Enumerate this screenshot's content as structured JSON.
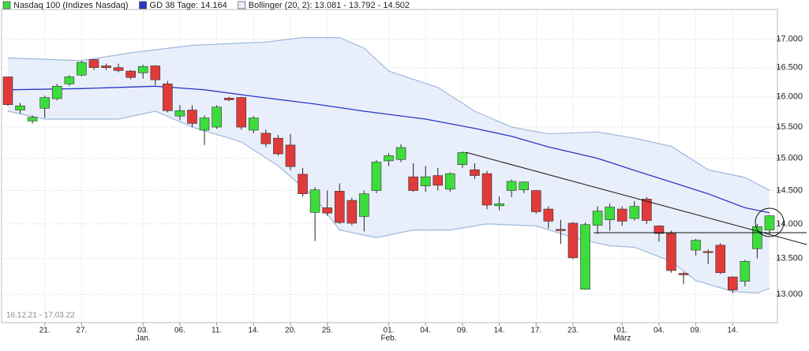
{
  "chart_data": {
    "type": "candlestick",
    "log_scale": true,
    "grid": true,
    "date_range": "16.12.21 - 17.03.22",
    "categories": [
      null,
      null,
      null,
      "21.",
      null,
      null,
      "27.",
      null,
      null,
      null,
      null,
      "03.",
      null,
      null,
      "06.",
      null,
      null,
      "11.",
      null,
      null,
      "14.",
      null,
      null,
      "20.",
      null,
      null,
      "25.",
      null,
      null,
      null,
      null,
      "01.",
      null,
      null,
      "04.",
      null,
      null,
      "09.",
      null,
      null,
      "14.",
      null,
      null,
      "17.",
      null,
      null,
      "23.",
      null,
      null,
      null,
      "01.",
      null,
      null,
      "04.",
      null,
      null,
      "09.",
      null,
      null,
      "14.",
      null,
      null,
      null
    ],
    "month_labels": [
      null,
      null,
      null,
      null,
      null,
      null,
      null,
      null,
      null,
      null,
      null,
      "Jan.",
      null,
      null,
      null,
      null,
      null,
      null,
      null,
      null,
      null,
      null,
      null,
      null,
      null,
      null,
      null,
      null,
      null,
      null,
      null,
      "Feb.",
      null,
      null,
      null,
      null,
      null,
      null,
      null,
      null,
      null,
      null,
      null,
      null,
      null,
      null,
      null,
      null,
      null,
      null,
      "März",
      null,
      null,
      null,
      null,
      null,
      null,
      null,
      null,
      null,
      null,
      null,
      null
    ],
    "ylim": [
      12620,
      17540
    ],
    "yticks": [
      {
        "value": 13000,
        "label": "13.000"
      },
      {
        "value": 13500,
        "label": "13.500"
      },
      {
        "value": 14000,
        "label": "14.000"
      },
      {
        "value": 14500,
        "label": "14.500"
      },
      {
        "value": 15000,
        "label": "15.000"
      },
      {
        "value": 15500,
        "label": "15.500"
      },
      {
        "value": 16000,
        "label": "16.000"
      },
      {
        "value": 16500,
        "label": "16.500"
      },
      {
        "value": 17000,
        "label": "17.000"
      }
    ],
    "series": [
      {
        "name": "Nasdaq 100 (Indizes Nasdaq)",
        "color": "#3ddc3d",
        "down_color": "#e03a3a",
        "open": [
          16340,
          15780,
          15600,
          15810,
          15970,
          16220,
          16370,
          16640,
          16530,
          16500,
          16440,
          16410,
          16530,
          16220,
          15680,
          15780,
          15450,
          15500,
          15980,
          15990,
          15450,
          15400,
          15320,
          15210,
          14750,
          14170,
          14240,
          14490,
          14350,
          14110,
          14500,
          14960,
          14980,
          14710,
          14570,
          14730,
          14520,
          14900,
          14820,
          14760,
          14270,
          14500,
          14510,
          14500,
          14220,
          13920,
          14010,
          13070,
          13980,
          14060,
          14220,
          14080,
          14370,
          13970,
          13860,
          13290,
          13620,
          13600,
          13690,
          13240,
          13180,
          13640,
          13910
        ],
        "high": [
          16340,
          15900,
          15690,
          16020,
          16220,
          16370,
          16620,
          16650,
          16570,
          16570,
          16460,
          16550,
          16540,
          16270,
          15860,
          15860,
          15690,
          15860,
          16000,
          16000,
          15680,
          15460,
          15370,
          15390,
          14850,
          14550,
          14500,
          14610,
          14390,
          14500,
          14970,
          15080,
          15220,
          14920,
          14880,
          14850,
          14780,
          15110,
          14920,
          14800,
          14410,
          14670,
          14640,
          14510,
          14260,
          14060,
          14030,
          14020,
          14260,
          14300,
          14260,
          14340,
          14400,
          13980,
          13900,
          13310,
          13780,
          13630,
          13720,
          13250,
          13480,
          14000,
          14130
        ],
        "low": [
          15850,
          15720,
          15560,
          15650,
          15940,
          16190,
          16350,
          16460,
          16460,
          16420,
          16300,
          16310,
          16200,
          15740,
          15610,
          15500,
          15210,
          15470,
          15930,
          15460,
          15400,
          15180,
          15040,
          14810,
          14410,
          13750,
          14120,
          14000,
          13980,
          13890,
          14460,
          14880,
          14940,
          14480,
          14480,
          14500,
          14480,
          14850,
          14680,
          14220,
          14200,
          14400,
          14460,
          14150,
          13930,
          13710,
          13490,
          13070,
          13850,
          13900,
          13970,
          14050,
          14000,
          13740,
          13300,
          13140,
          13540,
          13420,
          13280,
          13020,
          13110,
          13500,
          13840
        ],
        "close": [
          15870,
          15850,
          15660,
          15990,
          16180,
          16340,
          16590,
          16500,
          16500,
          16450,
          16330,
          16520,
          16290,
          15770,
          15770,
          15560,
          15650,
          15830,
          15950,
          15500,
          15650,
          15230,
          15070,
          14870,
          14450,
          14510,
          14160,
          14020,
          14010,
          14450,
          14940,
          15040,
          15170,
          14500,
          14710,
          14580,
          14760,
          15090,
          14730,
          14280,
          14300,
          14640,
          14630,
          14180,
          14040,
          13900,
          13510,
          13990,
          14190,
          14250,
          14040,
          14260,
          14050,
          13860,
          13330,
          13270,
          13760,
          13590,
          13300,
          13060,
          13460,
          13960,
          14120
        ]
      },
      {
        "name": "GD 38 Tage: 14.164",
        "color": "#2b36c8",
        "x": [
          0,
          6,
          12,
          16,
          20,
          25,
          29,
          34,
          38,
          41,
          44,
          48,
          51,
          54,
          57,
          60,
          62
        ],
        "values": [
          16120,
          16140,
          16180,
          16120,
          16010,
          15880,
          15760,
          15630,
          15480,
          15350,
          15180,
          15000,
          14810,
          14630,
          14450,
          14240,
          14164
        ]
      },
      {
        "name": "Bollinger (20, 2): 13.081 - 13.792 - 14.502",
        "color": "#9db8de",
        "fill": "#e9effa",
        "x_upper": [
          0,
          6,
          10,
          15,
          21,
          24,
          27,
          29,
          31,
          35,
          38,
          41,
          44,
          48,
          51,
          54,
          57,
          60,
          62
        ],
        "upper": [
          16670,
          16620,
          16760,
          16890,
          16950,
          17030,
          17030,
          16840,
          16440,
          16160,
          15760,
          15500,
          15390,
          15420,
          15320,
          15190,
          14820,
          14700,
          14502
        ],
        "x_lower": [
          0,
          3,
          6,
          9,
          12,
          15,
          19,
          22,
          25,
          27,
          30,
          33,
          36,
          39,
          43,
          46,
          49,
          51,
          54,
          56,
          59,
          61,
          62
        ],
        "lower": [
          15760,
          15630,
          15630,
          15630,
          15760,
          15500,
          15260,
          14880,
          14390,
          13910,
          13800,
          13910,
          13910,
          14000,
          13970,
          13800,
          13680,
          13660,
          13460,
          13190,
          13040,
          13020,
          13081
        ]
      }
    ]
  }
}
